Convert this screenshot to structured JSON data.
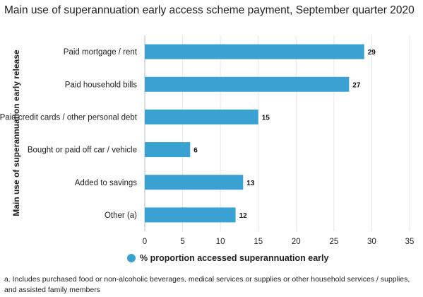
{
  "colors": {
    "bar": "#3aa1d3",
    "grid": "#e6e6e6",
    "axis": "#bbbbbb",
    "text": "#222222"
  },
  "footnote": "a. Includes purchased food or non-alcoholic beverages, medical services or supplies or other household services / supplies, and assisted family members",
  "chart_data": {
    "type": "bar",
    "orientation": "horizontal",
    "title": "Main use of superannuation early access scheme payment, September quarter 2020",
    "ylabel": "Main use of superannuation early release",
    "xlabel": "",
    "categories": [
      "Paid mortgage / rent",
      "Paid household bills",
      "Paid credit cards / other personal debt",
      "Bought or paid off car / vehicle",
      "Added to savings",
      "Other (a)"
    ],
    "series": [
      {
        "name": "% proportion accessed superannuation early",
        "values": [
          29,
          27,
          15,
          6,
          13,
          12
        ]
      }
    ],
    "xlim": [
      0,
      35
    ],
    "xticks": [
      0,
      5,
      10,
      15,
      20,
      25,
      30,
      35
    ],
    "grid": true,
    "legend": "bottom-center",
    "data_labels": true
  }
}
